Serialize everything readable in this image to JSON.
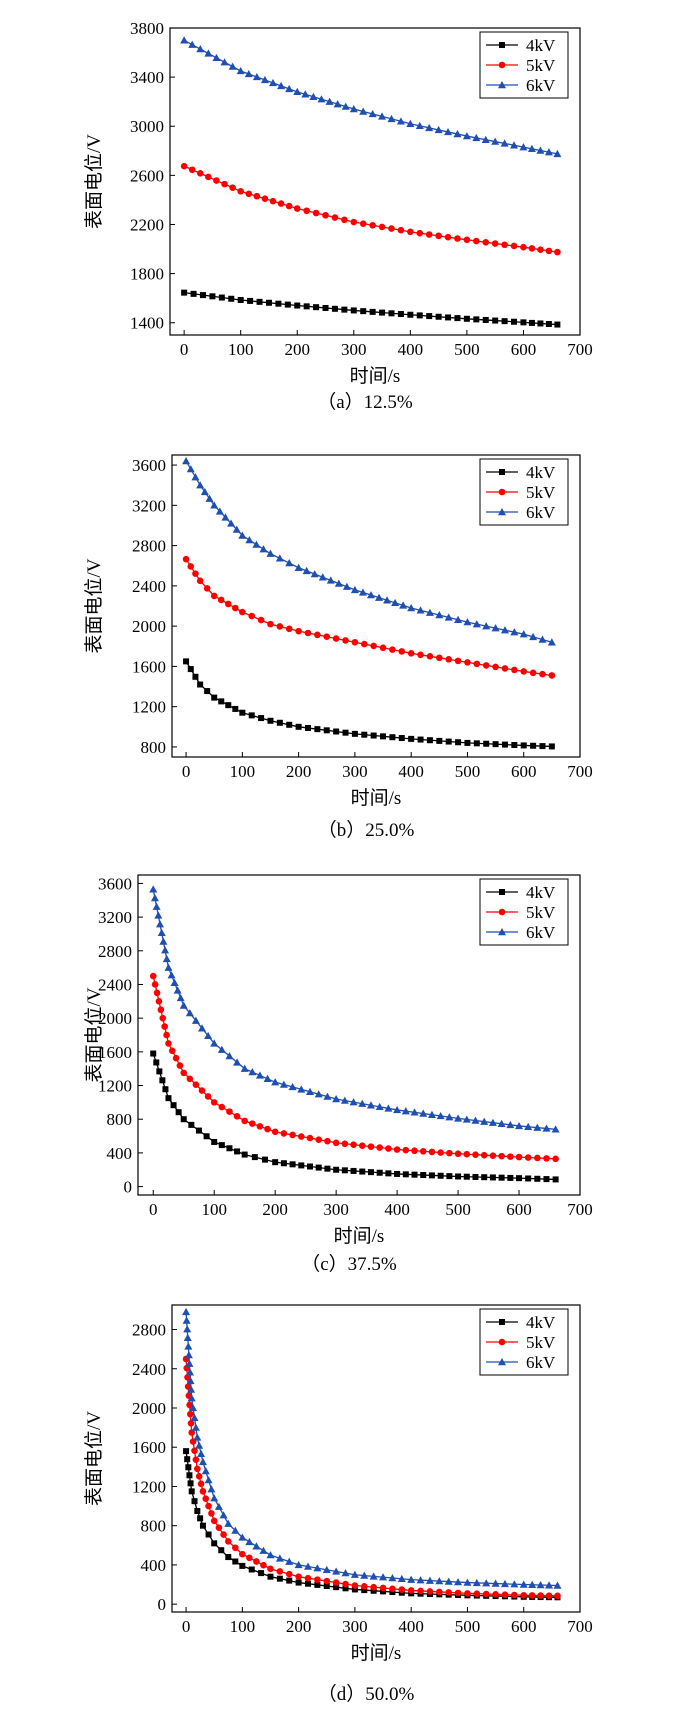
{
  "chart_data": [
    {
      "type": "line",
      "caption": "（a）12.5%",
      "xlabel": "时间/s",
      "ylabel": "表面电位/V",
      "xlim": [
        -25,
        700
      ],
      "ylim": [
        1300,
        3800
      ],
      "xticks": [
        0,
        100,
        200,
        300,
        400,
        500,
        600,
        700
      ],
      "yticks": [
        1400,
        1800,
        2200,
        2600,
        3000,
        3400,
        3800
      ],
      "legend_position": "top-right",
      "grid": false,
      "x": [
        0,
        100,
        200,
        300,
        400,
        500,
        600,
        660
      ],
      "series": [
        {
          "name": "4kV",
          "color": "#000000",
          "marker": "square",
          "values": [
            1645,
            1585,
            1540,
            1500,
            1465,
            1432,
            1403,
            1385
          ]
        },
        {
          "name": "5kV",
          "color": "#ff0000",
          "marker": "circle",
          "values": [
            2675,
            2470,
            2330,
            2220,
            2140,
            2075,
            2015,
            1975
          ]
        },
        {
          "name": "6kV",
          "color": "#1f4fb0",
          "marker": "triangle",
          "values": [
            3700,
            3450,
            3280,
            3140,
            3020,
            2920,
            2830,
            2775
          ]
        }
      ]
    },
    {
      "type": "line",
      "caption": "（b）25.0%",
      "xlabel": "时间/s",
      "ylabel": "表面电位/V",
      "xlim": [
        -25,
        700
      ],
      "ylim": [
        700,
        3700
      ],
      "xticks": [
        0,
        100,
        200,
        300,
        400,
        500,
        600,
        700
      ],
      "yticks": [
        800,
        1200,
        1600,
        2000,
        2400,
        2800,
        3200,
        3600
      ],
      "legend_position": "top-right",
      "grid": false,
      "x": [
        0,
        25,
        50,
        100,
        150,
        200,
        300,
        400,
        500,
        600,
        650
      ],
      "series": [
        {
          "name": "4kV",
          "color": "#000000",
          "marker": "square",
          "values": [
            1650,
            1420,
            1290,
            1140,
            1060,
            1000,
            930,
            880,
            840,
            815,
            805
          ]
        },
        {
          "name": "5kV",
          "color": "#ff0000",
          "marker": "circle",
          "values": [
            2665,
            2450,
            2300,
            2140,
            2020,
            1950,
            1840,
            1730,
            1640,
            1550,
            1510
          ]
        },
        {
          "name": "6kV",
          "color": "#1f4fb0",
          "marker": "triangle",
          "values": [
            3640,
            3400,
            3200,
            2900,
            2720,
            2580,
            2360,
            2180,
            2040,
            1920,
            1840
          ]
        }
      ]
    },
    {
      "type": "line",
      "caption": "（c）37.5%",
      "xlabel": "时间/s",
      "ylabel": "表面电位/V",
      "xlim": [
        -25,
        700
      ],
      "ylim": [
        -100,
        3700
      ],
      "xticks": [
        0,
        100,
        200,
        300,
        400,
        500,
        600,
        700
      ],
      "yticks": [
        0,
        400,
        800,
        1200,
        1600,
        2000,
        2400,
        2800,
        3200,
        3600
      ],
      "legend_position": "top-right",
      "grid": false,
      "x": [
        0,
        25,
        50,
        100,
        150,
        200,
        300,
        400,
        500,
        600,
        660
      ],
      "series": [
        {
          "name": "4kV",
          "color": "#000000",
          "marker": "square",
          "values": [
            1580,
            1050,
            800,
            530,
            380,
            290,
            200,
            150,
            120,
            100,
            85
          ]
        },
        {
          "name": "5kV",
          "color": "#ff0000",
          "marker": "circle",
          "values": [
            2500,
            1700,
            1350,
            1000,
            780,
            650,
            520,
            440,
            390,
            350,
            330
          ]
        },
        {
          "name": "6kV",
          "color": "#1f4fb0",
          "marker": "triangle",
          "values": [
            3530,
            2600,
            2150,
            1700,
            1400,
            1240,
            1040,
            910,
            810,
            720,
            680
          ]
        }
      ]
    },
    {
      "type": "line",
      "caption": "（d）50.0%",
      "xlabel": "时间/s",
      "ylabel": "表面电位/V",
      "xlim": [
        -25,
        700
      ],
      "ylim": [
        -80,
        3050
      ],
      "xticks": [
        0,
        100,
        200,
        300,
        400,
        500,
        600,
        700
      ],
      "yticks": [
        0,
        400,
        800,
        1200,
        1600,
        2000,
        2400,
        2800
      ],
      "legend_position": "top-right",
      "grid": false,
      "x": [
        0,
        10,
        20,
        30,
        50,
        75,
        100,
        150,
        200,
        300,
        400,
        500,
        600,
        660
      ],
      "series": [
        {
          "name": "4kV",
          "color": "#000000",
          "marker": "square",
          "values": [
            1560,
            1150,
            950,
            800,
            620,
            480,
            390,
            280,
            220,
            150,
            110,
            90,
            75,
            70
          ]
        },
        {
          "name": "5kV",
          "color": "#ff0000",
          "marker": "circle",
          "values": [
            2500,
            1750,
            1380,
            1150,
            850,
            640,
            510,
            360,
            280,
            190,
            140,
            110,
            90,
            85
          ]
        },
        {
          "name": "6kV",
          "color": "#1f4fb0",
          "marker": "triangle",
          "values": [
            2980,
            2100,
            1700,
            1450,
            1080,
            820,
            680,
            500,
            400,
            300,
            250,
            220,
            200,
            190
          ]
        }
      ]
    }
  ]
}
